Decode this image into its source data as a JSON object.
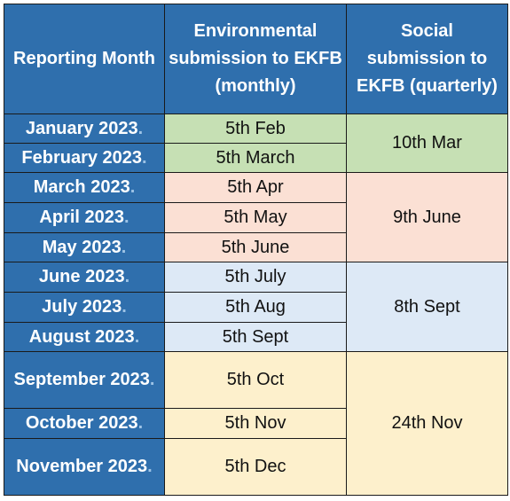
{
  "headers": {
    "month": "Reporting Month",
    "env": "Environmental submission to EKFB (monthly)",
    "soc": "Social submission to EKFB (quarterly)"
  },
  "month_suffix": ".",
  "rows": [
    {
      "month": "January 2023",
      "env": "5th Feb"
    },
    {
      "month": "February 2023",
      "env": "5th March"
    },
    {
      "month": "March 2023",
      "env": "5th Apr"
    },
    {
      "month": "April 2023",
      "env": "5th May"
    },
    {
      "month": "May 2023",
      "env": "5th June"
    },
    {
      "month": "June 2023",
      "env": "5th July"
    },
    {
      "month": "July 2023",
      "env": "5th Aug"
    },
    {
      "month": "August 2023",
      "env": "5th Sept"
    },
    {
      "month": "September 2023",
      "env": "5th Oct"
    },
    {
      "month": "October 2023",
      "env": "5th Nov"
    },
    {
      "month": "November 2023",
      "env": "5th Dec"
    }
  ],
  "social": [
    "10th Mar",
    "9th June",
    "8th Sept",
    "24th Nov"
  ],
  "colors": {
    "header_blue": "#2f6fad",
    "q1": "#c6e0b4",
    "q2": "#fbe0d4",
    "q3": "#dde9f6",
    "q4": "#fdf0cc"
  }
}
